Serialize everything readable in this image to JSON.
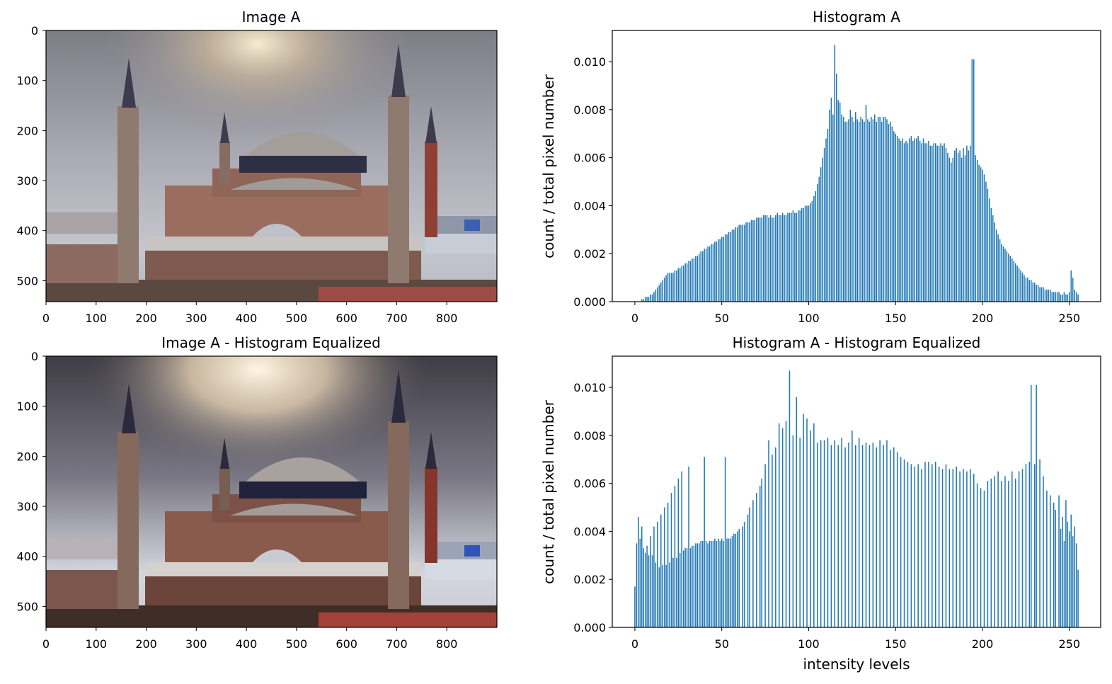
{
  "chart_data": [
    {
      "type": "image",
      "title": "Image A",
      "xticks": [
        "0",
        "100",
        "200",
        "300",
        "400",
        "500",
        "600",
        "700",
        "800"
      ],
      "yticks": [
        "0",
        "100",
        "200",
        "300",
        "400",
        "500"
      ],
      "xlim": [
        0,
        900
      ],
      "ylim": [
        542,
        0
      ],
      "equalized": false
    },
    {
      "type": "bar",
      "title": "Histogram A",
      "xlabel": "",
      "ylabel": "count / total pixel number",
      "xlim": [
        -13,
        268
      ],
      "ylim": [
        0,
        0.0113
      ],
      "xticks": [
        "0",
        "50",
        "100",
        "150",
        "200",
        "250"
      ],
      "yticks": [
        "0.000",
        "0.002",
        "0.004",
        "0.006",
        "0.008",
        "0.010"
      ],
      "color": "#1f77b4",
      "x_start": 0,
      "values": [
        0.0,
        0.0,
        0.0,
        0.0,
        0.0001,
        0.0001,
        0.0002,
        0.0002,
        0.0002,
        0.0003,
        0.0003,
        0.0004,
        0.0005,
        0.0006,
        0.0007,
        0.0008,
        0.0009,
        0.001,
        0.0011,
        0.0012,
        0.0012,
        0.0012,
        0.0012,
        0.0013,
        0.0013,
        0.0014,
        0.0014,
        0.0015,
        0.0015,
        0.0016,
        0.0016,
        0.0017,
        0.0017,
        0.0018,
        0.0018,
        0.0019,
        0.0019,
        0.002,
        0.0021,
        0.0021,
        0.0022,
        0.0022,
        0.0023,
        0.0023,
        0.0024,
        0.0024,
        0.0025,
        0.0025,
        0.0026,
        0.0026,
        0.0027,
        0.0027,
        0.0028,
        0.0028,
        0.0029,
        0.0029,
        0.003,
        0.003,
        0.0031,
        0.0031,
        0.0032,
        0.0032,
        0.0032,
        0.0032,
        0.0033,
        0.0033,
        0.0033,
        0.0034,
        0.0034,
        0.0034,
        0.0035,
        0.0035,
        0.0035,
        0.0035,
        0.0036,
        0.0036,
        0.0036,
        0.0035,
        0.0036,
        0.0035,
        0.0035,
        0.0036,
        0.0037,
        0.0036,
        0.0036,
        0.0037,
        0.0036,
        0.0036,
        0.0037,
        0.0037,
        0.0037,
        0.0038,
        0.0037,
        0.0037,
        0.0038,
        0.0038,
        0.0039,
        0.0039,
        0.004,
        0.004,
        0.004,
        0.0041,
        0.0042,
        0.0044,
        0.0046,
        0.0049,
        0.0052,
        0.0056,
        0.006,
        0.0064,
        0.0068,
        0.0072,
        0.008,
        0.0085,
        0.0078,
        0.0107,
        0.0095,
        0.0084,
        0.0083,
        0.0078,
        0.0077,
        0.0075,
        0.0075,
        0.0076,
        0.008,
        0.0077,
        0.0075,
        0.0079,
        0.0076,
        0.0075,
        0.0077,
        0.0076,
        0.0075,
        0.0082,
        0.0076,
        0.0075,
        0.0077,
        0.0076,
        0.0078,
        0.0075,
        0.0077,
        0.0077,
        0.0075,
        0.0077,
        0.0077,
        0.0076,
        0.0074,
        0.0075,
        0.0073,
        0.0071,
        0.007,
        0.0069,
        0.0068,
        0.0067,
        0.0068,
        0.0066,
        0.0067,
        0.0066,
        0.0068,
        0.0069,
        0.0067,
        0.0068,
        0.0068,
        0.0069,
        0.0067,
        0.0066,
        0.0068,
        0.0066,
        0.0066,
        0.0067,
        0.0065,
        0.0065,
        0.0066,
        0.0066,
        0.0065,
        0.0065,
        0.0066,
        0.0065,
        0.0066,
        0.0064,
        0.0062,
        0.006,
        0.0058,
        0.006,
        0.0063,
        0.0064,
        0.0062,
        0.0063,
        0.006,
        0.0064,
        0.0061,
        0.0065,
        0.0063,
        0.0065,
        0.0101,
        0.0101,
        0.0061,
        0.0059,
        0.0057,
        0.0056,
        0.0055,
        0.0053,
        0.005,
        0.0047,
        0.0043,
        0.0039,
        0.0036,
        0.0033,
        0.003,
        0.0028,
        0.0026,
        0.0024,
        0.0023,
        0.0022,
        0.0021,
        0.002,
        0.0019,
        0.0018,
        0.0017,
        0.0016,
        0.0015,
        0.0014,
        0.0013,
        0.0012,
        0.0011,
        0.001,
        0.001,
        0.0009,
        0.0009,
        0.0008,
        0.0008,
        0.0007,
        0.0007,
        0.0006,
        0.0006,
        0.0006,
        0.0005,
        0.0005,
        0.0005,
        0.0005,
        0.0004,
        0.0004,
        0.0004,
        0.0004,
        0.0004,
        0.0003,
        0.0003,
        0.0004,
        0.0003,
        0.0003,
        0.0004,
        0.0013,
        0.001,
        0.0005,
        0.0004,
        0.0003
      ]
    },
    {
      "type": "image",
      "title": "Image A - Histogram Equalized",
      "xticks": [
        "0",
        "100",
        "200",
        "300",
        "400",
        "500",
        "600",
        "700",
        "800"
      ],
      "yticks": [
        "0",
        "100",
        "200",
        "300",
        "400",
        "500"
      ],
      "xlim": [
        0,
        900
      ],
      "ylim": [
        542,
        0
      ],
      "equalized": true
    },
    {
      "type": "bar",
      "title": "Histogram A - Histogram Equalized",
      "xlabel": "intensity levels",
      "ylabel": "count / total pixel number",
      "xlim": [
        -13,
        268
      ],
      "ylim": [
        0,
        0.0113
      ],
      "xticks": [
        "0",
        "50",
        "100",
        "150",
        "200",
        "250"
      ],
      "yticks": [
        "0.000",
        "0.002",
        "0.004",
        "0.006",
        "0.008",
        "0.010"
      ],
      "color": "#1f77b4",
      "points": [
        [
          0,
          0.0017
        ],
        [
          1,
          0.0035
        ],
        [
          2,
          0.0046
        ],
        [
          3,
          0.0037
        ],
        [
          4,
          0.0042
        ],
        [
          5,
          0.0033
        ],
        [
          6,
          0.0031
        ],
        [
          7,
          0.0034
        ],
        [
          8,
          0.003
        ],
        [
          9,
          0.0038
        ],
        [
          10,
          0.003
        ],
        [
          11,
          0.0042
        ],
        [
          12,
          0.0027
        ],
        [
          13,
          0.0044
        ],
        [
          14,
          0.0025
        ],
        [
          15,
          0.0047
        ],
        [
          16,
          0.0026
        ],
        [
          17,
          0.005
        ],
        [
          18,
          0.0026
        ],
        [
          19,
          0.0052
        ],
        [
          20,
          0.0027
        ],
        [
          21,
          0.0056
        ],
        [
          22,
          0.0029
        ],
        [
          23,
          0.0059
        ],
        [
          24,
          0.0029
        ],
        [
          25,
          0.0062
        ],
        [
          26,
          0.0031
        ],
        [
          27,
          0.0065
        ],
        [
          28,
          0.0032
        ],
        [
          29,
          0.0033
        ],
        [
          30,
          0.0033
        ],
        [
          31,
          0.0067
        ],
        [
          32,
          0.0033
        ],
        [
          33,
          0.0034
        ],
        [
          34,
          0.0034
        ],
        [
          35,
          0.0035
        ],
        [
          36,
          0.0035
        ],
        [
          37,
          0.0035
        ],
        [
          38,
          0.0036
        ],
        [
          39,
          0.0036
        ],
        [
          40,
          0.0071
        ],
        [
          41,
          0.0036
        ],
        [
          42,
          0.0035
        ],
        [
          43,
          0.0036
        ],
        [
          44,
          0.0036
        ],
        [
          45,
          0.0036
        ],
        [
          46,
          0.0037
        ],
        [
          47,
          0.0036
        ],
        [
          48,
          0.0037
        ],
        [
          49,
          0.0036
        ],
        [
          50,
          0.0037
        ],
        [
          51,
          0.0036
        ],
        [
          52,
          0.0071
        ],
        [
          53,
          0.0037
        ],
        [
          54,
          0.0037
        ],
        [
          55,
          0.0037
        ],
        [
          56,
          0.0038
        ],
        [
          57,
          0.0039
        ],
        [
          58,
          0.0039
        ],
        [
          59,
          0.004
        ],
        [
          60,
          0.0041
        ],
        [
          62,
          0.0042
        ],
        [
          63,
          0.0044
        ],
        [
          65,
          0.0047
        ],
        [
          66,
          0.005
        ],
        [
          68,
          0.0053
        ],
        [
          70,
          0.0056
        ],
        [
          72,
          0.0059
        ],
        [
          73,
          0.0062
        ],
        [
          75,
          0.0068
        ],
        [
          77,
          0.0078
        ],
        [
          79,
          0.0072
        ],
        [
          81,
          0.0075
        ],
        [
          83,
          0.0085
        ],
        [
          85,
          0.0083
        ],
        [
          87,
          0.0086
        ],
        [
          89,
          0.0107
        ],
        [
          91,
          0.008
        ],
        [
          93,
          0.0096
        ],
        [
          95,
          0.0079
        ],
        [
          97,
          0.0089
        ],
        [
          99,
          0.0087
        ],
        [
          101,
          0.0082
        ],
        [
          103,
          0.0085
        ],
        [
          105,
          0.0077
        ],
        [
          107,
          0.0078
        ],
        [
          109,
          0.0078
        ],
        [
          111,
          0.0079
        ],
        [
          113,
          0.0076
        ],
        [
          115,
          0.0078
        ],
        [
          117,
          0.0076
        ],
        [
          119,
          0.0079
        ],
        [
          121,
          0.0075
        ],
        [
          123,
          0.0077
        ],
        [
          125,
          0.0082
        ],
        [
          127,
          0.0076
        ],
        [
          129,
          0.0079
        ],
        [
          131,
          0.0076
        ],
        [
          133,
          0.0077
        ],
        [
          135,
          0.0076
        ],
        [
          137,
          0.0077
        ],
        [
          139,
          0.0075
        ],
        [
          141,
          0.0078
        ],
        [
          143,
          0.0076
        ],
        [
          145,
          0.0078
        ],
        [
          147,
          0.0074
        ],
        [
          149,
          0.0075
        ],
        [
          151,
          0.0073
        ],
        [
          153,
          0.0071
        ],
        [
          155,
          0.007
        ],
        [
          157,
          0.0069
        ],
        [
          159,
          0.0068
        ],
        [
          161,
          0.0067
        ],
        [
          163,
          0.0068
        ],
        [
          165,
          0.0066
        ],
        [
          167,
          0.0069
        ],
        [
          169,
          0.0069
        ],
        [
          171,
          0.0068
        ],
        [
          173,
          0.0069
        ],
        [
          175,
          0.0067
        ],
        [
          177,
          0.0066
        ],
        [
          179,
          0.0068
        ],
        [
          181,
          0.0066
        ],
        [
          183,
          0.0066
        ],
        [
          185,
          0.0067
        ],
        [
          187,
          0.0065
        ],
        [
          189,
          0.0066
        ],
        [
          191,
          0.0065
        ],
        [
          193,
          0.0066
        ],
        [
          195,
          0.0064
        ],
        [
          197,
          0.006
        ],
        [
          199,
          0.0058
        ],
        [
          201,
          0.0057
        ],
        [
          203,
          0.0061
        ],
        [
          205,
          0.0062
        ],
        [
          207,
          0.0063
        ],
        [
          209,
          0.0065
        ],
        [
          211,
          0.0061
        ],
        [
          213,
          0.0063
        ],
        [
          215,
          0.0061
        ],
        [
          217,
          0.0065
        ],
        [
          219,
          0.0062
        ],
        [
          221,
          0.0065
        ],
        [
          223,
          0.0066
        ],
        [
          225,
          0.0068
        ],
        [
          227,
          0.0069
        ],
        [
          228,
          0.0101
        ],
        [
          230,
          0.0068
        ],
        [
          231,
          0.0101
        ],
        [
          233,
          0.007
        ],
        [
          235,
          0.0063
        ],
        [
          237,
          0.0057
        ],
        [
          239,
          0.0055
        ],
        [
          241,
          0.0052
        ],
        [
          242,
          0.0049
        ],
        [
          244,
          0.0055
        ],
        [
          245,
          0.0041
        ],
        [
          246,
          0.0046
        ],
        [
          247,
          0.0036
        ],
        [
          248,
          0.0053
        ],
        [
          249,
          0.0044
        ],
        [
          250,
          0.004
        ],
        [
          251,
          0.0047
        ],
        [
          252,
          0.0038
        ],
        [
          253,
          0.0042
        ],
        [
          254,
          0.0035
        ],
        [
          255,
          0.0024
        ]
      ]
    }
  ]
}
